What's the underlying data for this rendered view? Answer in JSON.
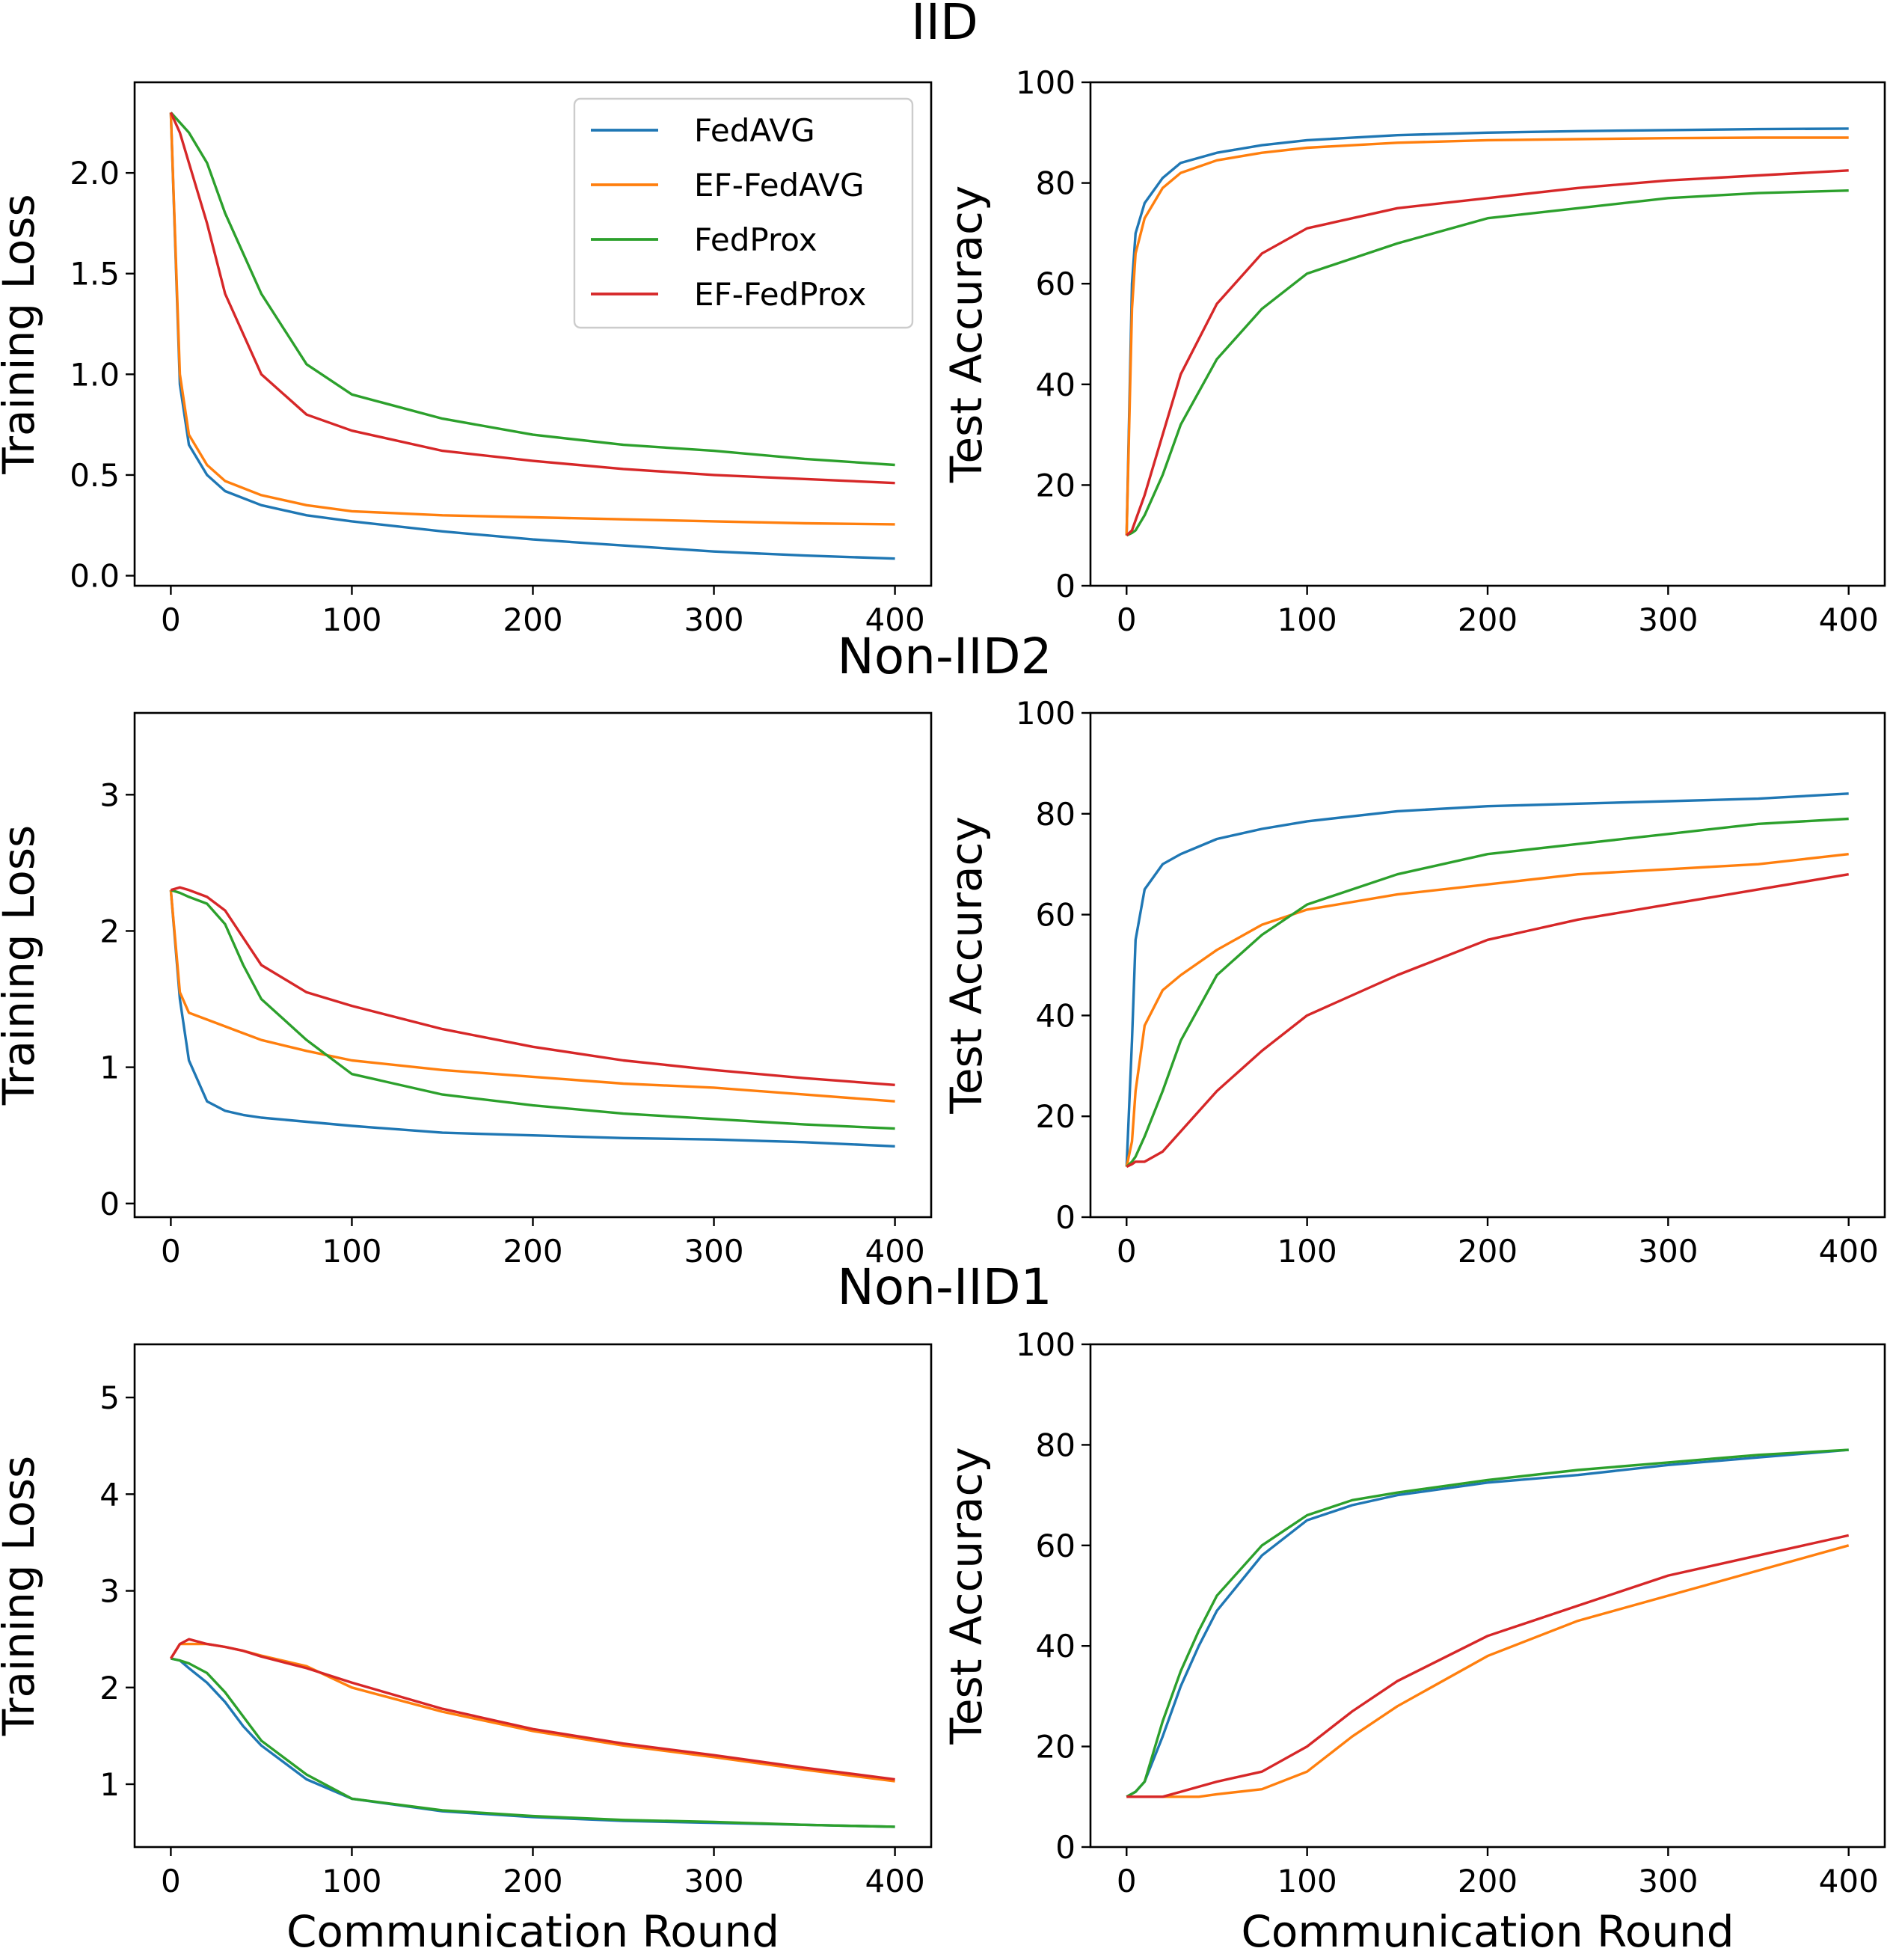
{
  "colors": {
    "FedAVG": "#1f77b4",
    "EF-FedAVG": "#ff7f0e",
    "FedProx": "#2ca02c",
    "EF-FedProx": "#d62728"
  },
  "legend": {
    "placement": "upper-right",
    "shown_in": "IID training loss panel",
    "entries": [
      "FedAVG",
      "EF-FedAVG",
      "FedProx",
      "EF-FedProx"
    ]
  },
  "row_titles": [
    "IID",
    "Non-IID2",
    "Non-IID1"
  ],
  "chart_data": [
    {
      "type": "line",
      "row_title": "IID",
      "xlabel": "",
      "ylabel": "Training Loss",
      "xlim": [
        -20,
        420
      ],
      "ylim": [
        -0.05,
        2.45
      ],
      "xticks": [
        "0",
        "100",
        "200",
        "300",
        "400"
      ],
      "yticks": [
        "0.0",
        "0.5",
        "1.0",
        "1.5",
        "2.0"
      ],
      "x": [
        0,
        5,
        10,
        20,
        30,
        50,
        75,
        100,
        150,
        200,
        250,
        300,
        350,
        400
      ],
      "series": [
        {
          "name": "FedAVG",
          "values": [
            2.3,
            0.95,
            0.65,
            0.5,
            0.42,
            0.35,
            0.3,
            0.27,
            0.22,
            0.18,
            0.15,
            0.12,
            0.1,
            0.085
          ]
        },
        {
          "name": "EF-FedAVG",
          "values": [
            2.3,
            1.0,
            0.7,
            0.55,
            0.47,
            0.4,
            0.35,
            0.32,
            0.3,
            0.29,
            0.28,
            0.27,
            0.26,
            0.255
          ]
        },
        {
          "name": "FedProx",
          "values": [
            2.3,
            2.25,
            2.2,
            2.05,
            1.8,
            1.4,
            1.05,
            0.9,
            0.78,
            0.7,
            0.65,
            0.62,
            0.58,
            0.55
          ]
        },
        {
          "name": "EF-FedProx",
          "values": [
            2.3,
            2.2,
            2.05,
            1.75,
            1.4,
            1.0,
            0.8,
            0.72,
            0.62,
            0.57,
            0.53,
            0.5,
            0.48,
            0.46
          ]
        }
      ]
    },
    {
      "type": "line",
      "row_title": "IID",
      "xlabel": "",
      "ylabel": "Test Accuracy",
      "xlim": [
        -20,
        420
      ],
      "ylim": [
        0,
        100
      ],
      "xticks": [
        "0",
        "100",
        "200",
        "300",
        "400"
      ],
      "yticks": [
        "0",
        "20",
        "40",
        "60",
        "80",
        "100"
      ],
      "x": [
        0,
        3,
        5,
        10,
        20,
        30,
        50,
        75,
        100,
        150,
        200,
        250,
        300,
        350,
        400
      ],
      "series": [
        {
          "name": "FedAVG",
          "values": [
            10,
            60,
            70,
            76,
            81,
            84,
            86,
            87.5,
            88.5,
            89.5,
            90,
            90.3,
            90.5,
            90.7,
            90.8
          ]
        },
        {
          "name": "EF-FedAVG",
          "values": [
            10,
            55,
            66,
            73,
            79,
            82,
            84.5,
            86,
            87,
            88,
            88.5,
            88.7,
            88.9,
            89,
            89
          ]
        },
        {
          "name": "FedProx",
          "values": [
            10,
            10.5,
            11,
            14,
            22,
            32,
            45,
            55,
            62,
            68,
            73,
            75,
            77,
            78,
            78.5
          ]
        },
        {
          "name": "EF-FedProx",
          "values": [
            10,
            11,
            13,
            18,
            30,
            42,
            56,
            66,
            71,
            75,
            77,
            79,
            80.5,
            81.5,
            82.5
          ]
        }
      ]
    },
    {
      "type": "line",
      "row_title": "Non-IID2",
      "xlabel": "",
      "ylabel": "Training Loss",
      "xlim": [
        -20,
        420
      ],
      "ylim": [
        -0.1,
        3.6
      ],
      "xticks": [
        "0",
        "100",
        "200",
        "300",
        "400"
      ],
      "yticks": [
        "0",
        "1",
        "2",
        "3"
      ],
      "x": [
        0,
        5,
        10,
        20,
        30,
        40,
        50,
        75,
        100,
        150,
        200,
        250,
        300,
        350,
        400
      ],
      "series": [
        {
          "name": "FedAVG",
          "values": [
            2.3,
            1.5,
            1.05,
            0.75,
            0.68,
            0.65,
            0.63,
            0.6,
            0.57,
            0.52,
            0.5,
            0.48,
            0.47,
            0.45,
            0.42
          ]
        },
        {
          "name": "EF-FedAVG",
          "values": [
            2.3,
            1.55,
            1.4,
            1.35,
            1.3,
            1.25,
            1.2,
            1.12,
            1.05,
            0.98,
            0.93,
            0.88,
            0.85,
            0.8,
            0.75
          ]
        },
        {
          "name": "FedProx",
          "values": [
            2.3,
            2.28,
            2.25,
            2.2,
            2.05,
            1.75,
            1.5,
            1.2,
            0.95,
            0.8,
            0.72,
            0.66,
            0.62,
            0.58,
            0.55
          ]
        },
        {
          "name": "EF-FedProx",
          "values": [
            2.3,
            2.32,
            2.3,
            2.25,
            2.15,
            1.95,
            1.75,
            1.55,
            1.45,
            1.28,
            1.15,
            1.05,
            0.98,
            0.92,
            0.87
          ]
        }
      ]
    },
    {
      "type": "line",
      "row_title": "Non-IID2",
      "xlabel": "",
      "ylabel": "Test Accuracy",
      "xlim": [
        -20,
        420
      ],
      "ylim": [
        0,
        100
      ],
      "xticks": [
        "0",
        "100",
        "200",
        "300",
        "400"
      ],
      "yticks": [
        "0",
        "20",
        "40",
        "60",
        "80",
        "100"
      ],
      "x": [
        0,
        3,
        5,
        10,
        20,
        30,
        50,
        75,
        100,
        150,
        200,
        250,
        300,
        350,
        400
      ],
      "series": [
        {
          "name": "FedAVG",
          "values": [
            10,
            35,
            55,
            65,
            70,
            72,
            75,
            77,
            78.5,
            80.5,
            81.5,
            82,
            82.5,
            83,
            84
          ]
        },
        {
          "name": "EF-FedAVG",
          "values": [
            10,
            15,
            25,
            38,
            45,
            48,
            53,
            58,
            61,
            64,
            66,
            68,
            69,
            70,
            72
          ]
        },
        {
          "name": "FedProx",
          "values": [
            10,
            11,
            12,
            16,
            25,
            35,
            48,
            56,
            62,
            68,
            72,
            74,
            76,
            78,
            79
          ]
        },
        {
          "name": "EF-FedProx",
          "values": [
            10,
            10.5,
            11,
            11,
            13,
            17,
            25,
            33,
            40,
            48,
            55,
            59,
            62,
            65,
            68
          ]
        }
      ]
    },
    {
      "type": "line",
      "row_title": "Non-IID1",
      "xlabel": "Communication Round",
      "ylabel": "Training Loss",
      "xlim": [
        -20,
        420
      ],
      "ylim": [
        0.35,
        5.55
      ],
      "xticks": [
        "0",
        "100",
        "200",
        "300",
        "400"
      ],
      "yticks": [
        "1",
        "2",
        "3",
        "4",
        "5"
      ],
      "x": [
        0,
        5,
        10,
        20,
        30,
        40,
        50,
        75,
        100,
        150,
        200,
        250,
        300,
        350,
        400
      ],
      "series": [
        {
          "name": "FedAVG",
          "values": [
            2.3,
            2.28,
            2.2,
            2.05,
            1.85,
            1.6,
            1.4,
            1.05,
            0.85,
            0.72,
            0.66,
            0.62,
            0.6,
            0.58,
            0.56
          ]
        },
        {
          "name": "EF-FedAVG",
          "values": [
            2.3,
            2.45,
            2.45,
            2.45,
            2.42,
            2.38,
            2.33,
            2.22,
            2.0,
            1.75,
            1.55,
            1.4,
            1.28,
            1.15,
            1.03
          ]
        },
        {
          "name": "FedProx",
          "values": [
            2.3,
            2.28,
            2.25,
            2.15,
            1.95,
            1.7,
            1.45,
            1.1,
            0.85,
            0.73,
            0.67,
            0.63,
            0.61,
            0.58,
            0.56
          ]
        },
        {
          "name": "EF-FedProx",
          "values": [
            2.3,
            2.45,
            2.5,
            2.45,
            2.42,
            2.38,
            2.32,
            2.2,
            2.05,
            1.78,
            1.57,
            1.42,
            1.3,
            1.17,
            1.05
          ]
        }
      ]
    },
    {
      "type": "line",
      "row_title": "Non-IID1",
      "xlabel": "Communication Round",
      "ylabel": "Test Accuracy",
      "xlim": [
        -20,
        420
      ],
      "ylim": [
        0,
        100
      ],
      "xticks": [
        "0",
        "100",
        "200",
        "300",
        "400"
      ],
      "yticks": [
        "0",
        "20",
        "40",
        "60",
        "80",
        "100"
      ],
      "x": [
        0,
        5,
        10,
        20,
        30,
        40,
        50,
        75,
        100,
        125,
        150,
        200,
        250,
        300,
        350,
        400
      ],
      "series": [
        {
          "name": "FedAVG",
          "values": [
            10,
            11,
            13,
            22,
            32,
            40,
            47,
            58,
            65,
            68,
            70,
            72.5,
            74,
            76,
            77.5,
            79
          ]
        },
        {
          "name": "EF-FedAVG",
          "values": [
            10,
            10,
            10,
            10,
            10,
            10,
            10.5,
            11.5,
            15,
            22,
            28,
            38,
            45,
            50,
            55,
            60
          ]
        },
        {
          "name": "FedProx",
          "values": [
            10,
            11,
            13,
            25,
            35,
            43,
            50,
            60,
            66,
            69,
            70.5,
            73,
            75,
            76.5,
            78,
            79
          ]
        },
        {
          "name": "EF-FedProx",
          "values": [
            10,
            10,
            10,
            10,
            11,
            12,
            13,
            15,
            20,
            27,
            33,
            42,
            48,
            54,
            58,
            62
          ]
        }
      ]
    }
  ]
}
